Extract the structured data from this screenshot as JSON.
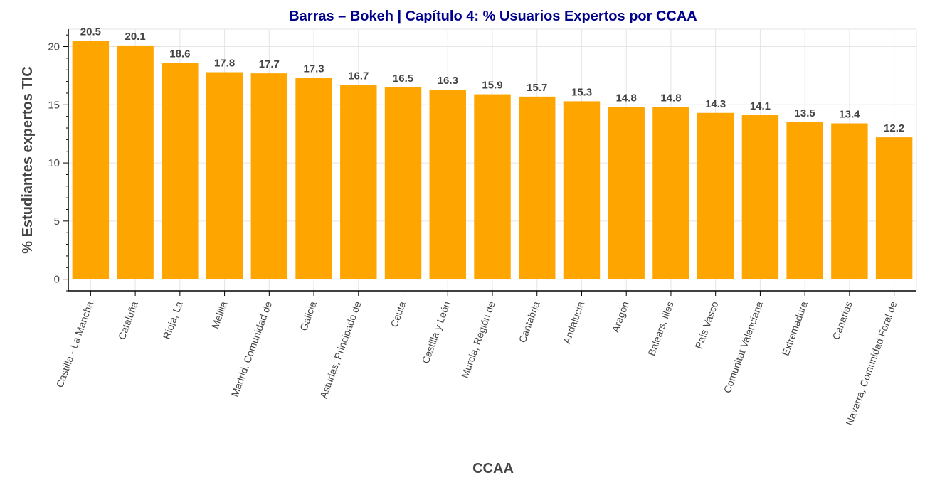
{
  "chart_data": {
    "type": "bar",
    "title": "Barras – Bokeh | Capítulo 4: % Usuarios Expertos por CCAA",
    "xlabel": "CCAA",
    "ylabel": "% Estudiantes expertos TIC",
    "categories": [
      "Castilla - La Mancha",
      "Cataluña",
      "Rioja, La",
      "Melilla",
      "Madrid, Comunidad de",
      "Galicia",
      "Asturias, Principado de",
      "Ceuta",
      "Castilla y León",
      "Murcia, Región de",
      "Cantabria",
      "Andalucía",
      "Aragón",
      "Balears, Illes",
      "País Vasco",
      "Comunitat Valenciana",
      "Extremadura",
      "Canarias",
      "Navarra, Comunidad Foral de"
    ],
    "values": [
      20.5,
      20.1,
      18.6,
      17.8,
      17.7,
      17.3,
      16.7,
      16.5,
      16.3,
      15.9,
      15.7,
      15.3,
      14.8,
      14.8,
      14.3,
      14.1,
      13.5,
      13.4,
      12.2
    ],
    "value_labels": [
      "20.5",
      "20.1",
      "18.6",
      "17.8",
      "17.7",
      "17.3",
      "16.7",
      "16.5",
      "16.3",
      "15.9",
      "15.7",
      "15.3",
      "14.8",
      "14.8",
      "14.3",
      "14.1",
      "13.5",
      "13.4",
      "12.2"
    ],
    "yticks": [
      0,
      5,
      10,
      15,
      20
    ],
    "ylim": [
      -1,
      21.5
    ],
    "grid": true,
    "colors": {
      "bar": "#ffa500",
      "title": "#00008b",
      "text": "#444444"
    }
  }
}
